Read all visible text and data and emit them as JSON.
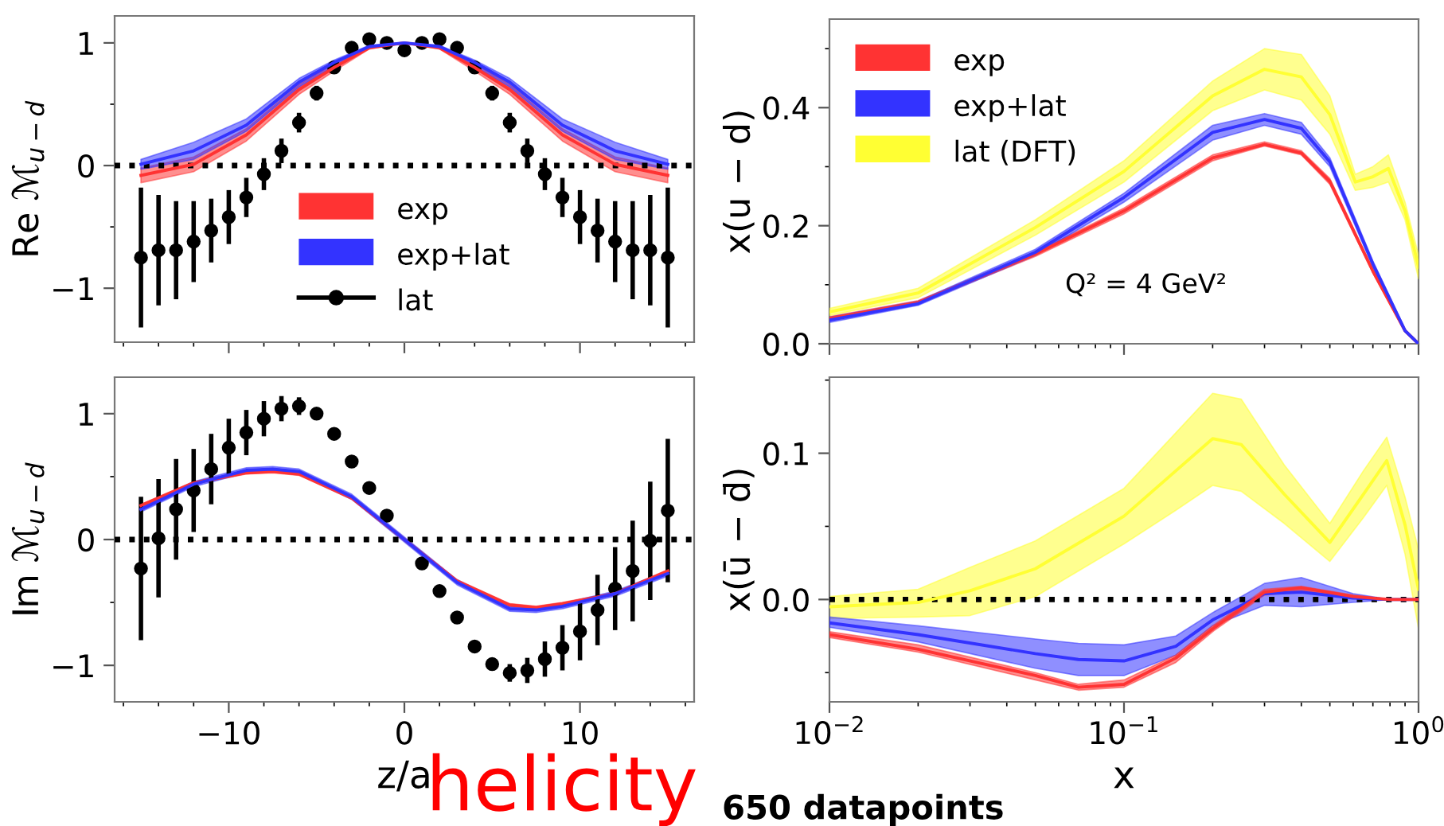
{
  "chart_data": [
    {
      "type": "line",
      "ylabel": "Re ℳ$_{u−d}$",
      "xlim": [
        -16.5,
        16.5
      ],
      "xticks": [
        -10,
        0,
        10
      ],
      "ylim": [
        -1.44,
        1.22
      ],
      "yticks": [
        {
          "value": -1,
          "label": "−1"
        },
        0,
        1
      ],
      "tick_labels": "y",
      "legend": "bottom",
      "grid": false,
      "ref_lines": [
        {
          "axis": "y",
          "value": 0,
          "line_style": "dotted",
          "color": "#000000"
        }
      ],
      "series": [
        {
          "name": "exp",
          "color": "#ff3333",
          "x": [
            -15,
            -12,
            -9,
            -6,
            -4,
            -2,
            0,
            2,
            4,
            6,
            9,
            12,
            15
          ],
          "values": [
            -0.08,
            0.01,
            0.25,
            0.62,
            0.8,
            0.96,
            1.0,
            0.96,
            0.8,
            0.62,
            0.25,
            0.01,
            -0.08
          ],
          "lower": [
            -0.14,
            -0.05,
            0.2,
            0.58,
            0.77,
            0.95,
            1.0,
            0.95,
            0.77,
            0.58,
            0.2,
            -0.05,
            -0.14
          ],
          "upper": [
            -0.02,
            0.07,
            0.3,
            0.66,
            0.83,
            0.97,
            1.0,
            0.97,
            0.83,
            0.66,
            0.3,
            0.07,
            -0.02
          ]
        },
        {
          "name": "exp+lat",
          "color": "#3333ff",
          "x": [
            -15,
            -12,
            -9,
            -6,
            -4,
            -2,
            0,
            2,
            4,
            6,
            9,
            12,
            15
          ],
          "values": [
            0.01,
            0.12,
            0.33,
            0.68,
            0.84,
            0.97,
            1.0,
            0.97,
            0.84,
            0.68,
            0.33,
            0.12,
            0.01
          ],
          "lower": [
            -0.03,
            0.05,
            0.28,
            0.64,
            0.81,
            0.96,
            1.0,
            0.96,
            0.81,
            0.64,
            0.28,
            0.05,
            -0.03
          ],
          "upper": [
            0.05,
            0.19,
            0.38,
            0.71,
            0.86,
            0.98,
            1.0,
            0.98,
            0.86,
            0.71,
            0.38,
            0.19,
            0.05
          ]
        },
        {
          "name": "lat",
          "type": "scatter",
          "marker": "circle",
          "color": "#000000",
          "x": [
            -15,
            -14,
            -13,
            -12,
            -11,
            -10,
            -9,
            -8,
            -7,
            -6,
            -5,
            -4,
            -3,
            -2,
            -1,
            0,
            1,
            2,
            3,
            4,
            5,
            6,
            7,
            8,
            9,
            10,
            11,
            12,
            13,
            14,
            15
          ],
          "values": [
            -0.75,
            -0.69,
            -0.69,
            -0.62,
            -0.53,
            -0.42,
            -0.26,
            -0.07,
            0.12,
            0.35,
            0.59,
            0.8,
            0.96,
            1.03,
            1.0,
            0.94,
            1.0,
            1.03,
            0.96,
            0.8,
            0.59,
            0.35,
            0.12,
            -0.07,
            -0.26,
            -0.42,
            -0.53,
            -0.62,
            -0.69,
            -0.69,
            -0.75
          ],
          "errors": [
            0.57,
            0.45,
            0.4,
            0.33,
            0.26,
            0.22,
            0.16,
            0.13,
            0.1,
            0.08,
            0.06,
            0.05,
            0.04,
            0.03,
            0.02,
            0.02,
            0.02,
            0.03,
            0.04,
            0.05,
            0.06,
            0.08,
            0.1,
            0.13,
            0.16,
            0.22,
            0.26,
            0.33,
            0.4,
            0.45,
            0.57
          ]
        }
      ]
    },
    {
      "type": "line",
      "ylabel": "x(u − d)",
      "log": "x",
      "xlim": [
        0.01,
        1
      ],
      "xticks": [
        {
          "value": 0.01,
          "label": null
        },
        {
          "value": 0.1,
          "label": null
        },
        {
          "value": 1,
          "label": null
        }
      ],
      "ylim": [
        0,
        0.55
      ],
      "yticks": [
        {
          "value": 0,
          "label": "0.0"
        },
        {
          "value": 0.2,
          "label": "0.2"
        },
        {
          "value": 0.4,
          "label": "0.4"
        }
      ],
      "tick_labels": "y",
      "legend": "top left",
      "grid": false,
      "annotations": [
        "Q² = 4 GeV²"
      ],
      "series": [
        {
          "name": "exp",
          "color": "#ff3333",
          "x": [
            0.01,
            0.02,
            0.05,
            0.1,
            0.2,
            0.3,
            0.4,
            0.5,
            0.7,
            0.9,
            1.0
          ],
          "values": [
            0.043,
            0.07,
            0.152,
            0.225,
            0.315,
            0.338,
            0.323,
            0.275,
            0.123,
            0.022,
            0.0
          ],
          "lower": [
            0.04,
            0.068,
            0.148,
            0.22,
            0.31,
            0.335,
            0.32,
            0.27,
            0.12,
            0.02,
            0.0
          ],
          "upper": [
            0.046,
            0.073,
            0.155,
            0.23,
            0.32,
            0.342,
            0.327,
            0.28,
            0.126,
            0.024,
            0.0
          ]
        },
        {
          "name": "exp+lat",
          "color": "#3333ff",
          "x": [
            0.01,
            0.02,
            0.05,
            0.1,
            0.2,
            0.3,
            0.4,
            0.5,
            0.7,
            0.9,
            1.0
          ],
          "values": [
            0.04,
            0.068,
            0.155,
            0.248,
            0.358,
            0.38,
            0.365,
            0.308,
            0.135,
            0.022,
            0.0
          ],
          "lower": [
            0.036,
            0.065,
            0.15,
            0.24,
            0.345,
            0.37,
            0.355,
            0.3,
            0.13,
            0.02,
            0.0
          ],
          "upper": [
            0.045,
            0.072,
            0.16,
            0.255,
            0.37,
            0.39,
            0.375,
            0.315,
            0.14,
            0.025,
            0.0
          ]
        },
        {
          "name": "lat (DFT)",
          "color": "#ffff33",
          "x": [
            0.01,
            0.02,
            0.05,
            0.1,
            0.2,
            0.3,
            0.4,
            0.5,
            0.61,
            0.7,
            0.79,
            0.9,
            1.0
          ],
          "values": [
            0.054,
            0.086,
            0.197,
            0.292,
            0.42,
            0.465,
            0.452,
            0.388,
            0.274,
            0.283,
            0.297,
            0.225,
            0.13
          ],
          "lower": [
            0.048,
            0.078,
            0.184,
            0.274,
            0.395,
            0.43,
            0.413,
            0.355,
            0.26,
            0.265,
            0.274,
            0.21,
            0.11
          ],
          "upper": [
            0.06,
            0.094,
            0.21,
            0.31,
            0.445,
            0.5,
            0.49,
            0.42,
            0.287,
            0.3,
            0.32,
            0.24,
            0.15
          ]
        }
      ]
    },
    {
      "type": "line",
      "ylabel": "Im ℳ$_{u−d}$",
      "xlabel": "z/a",
      "xlim": [
        -16.5,
        16.5
      ],
      "xticks": [
        {
          "value": -10,
          "label": "−10"
        },
        0,
        10
      ],
      "ylim": [
        -1.29,
        1.29
      ],
      "yticks": [
        {
          "value": -1,
          "label": "−1"
        },
        0,
        1
      ],
      "grid": false,
      "annotations": [
        "helicity"
      ],
      "ref_lines": [
        {
          "axis": "y",
          "value": 0,
          "line_style": "dotted",
          "color": "#000000"
        }
      ],
      "series": [
        {
          "color": "#ff3333",
          "x": [
            -15,
            -12,
            -9,
            -7.5,
            -6,
            -3,
            0,
            3,
            6,
            7.5,
            9,
            12,
            15
          ],
          "values": [
            0.27,
            0.45,
            0.53,
            0.54,
            0.52,
            0.33,
            0.0,
            -0.33,
            -0.52,
            -0.54,
            -0.51,
            -0.43,
            -0.25
          ],
          "lower": [
            0.26,
            0.44,
            0.52,
            0.53,
            0.51,
            0.32,
            -0.01,
            -0.34,
            -0.53,
            -0.55,
            -0.52,
            -0.44,
            -0.26
          ],
          "upper": [
            0.28,
            0.46,
            0.54,
            0.55,
            0.53,
            0.34,
            0.01,
            -0.32,
            -0.51,
            -0.53,
            -0.5,
            -0.42,
            -0.24
          ]
        },
        {
          "color": "#3333ff",
          "x": [
            -15,
            -12,
            -9,
            -7.5,
            -6,
            -3,
            0,
            3,
            6,
            7.5,
            9,
            12,
            15
          ],
          "values": [
            0.24,
            0.44,
            0.55,
            0.56,
            0.54,
            0.34,
            0.0,
            -0.34,
            -0.55,
            -0.56,
            -0.53,
            -0.43,
            -0.27
          ],
          "lower": [
            0.22,
            0.42,
            0.53,
            0.54,
            0.52,
            0.32,
            -0.02,
            -0.36,
            -0.57,
            -0.58,
            -0.55,
            -0.45,
            -0.29
          ],
          "upper": [
            0.26,
            0.46,
            0.57,
            0.58,
            0.56,
            0.36,
            0.02,
            -0.32,
            -0.53,
            -0.54,
            -0.51,
            -0.41,
            -0.25
          ]
        },
        {
          "type": "scatter",
          "marker": "circle",
          "color": "#000000",
          "x": [
            -15,
            -14,
            -13,
            -12,
            -11,
            -10,
            -9,
            -8,
            -7,
            -6,
            -5,
            -4,
            -3,
            -2,
            -1,
            1,
            2,
            3,
            4,
            5,
            6,
            7,
            8,
            9,
            10,
            11,
            12,
            13,
            14,
            15
          ],
          "values": [
            -0.23,
            0.01,
            0.24,
            0.39,
            0.56,
            0.73,
            0.85,
            0.96,
            1.04,
            1.06,
            1.0,
            0.84,
            0.62,
            0.41,
            0.19,
            -0.19,
            -0.41,
            -0.62,
            -0.85,
            -0.99,
            -1.06,
            -1.04,
            -0.95,
            -0.86,
            -0.73,
            -0.56,
            -0.39,
            -0.25,
            -0.01,
            0.23
          ],
          "errors": [
            0.57,
            0.47,
            0.4,
            0.33,
            0.28,
            0.23,
            0.18,
            0.14,
            0.1,
            0.07,
            0.04,
            null,
            null,
            null,
            null,
            null,
            null,
            null,
            null,
            0.04,
            0.07,
            0.1,
            0.14,
            0.18,
            0.23,
            0.28,
            0.33,
            0.4,
            0.47,
            0.57
          ]
        }
      ]
    },
    {
      "type": "line",
      "ylabel": "x(ū − d̄)",
      "xlabel": "x",
      "log": "x",
      "xlim": [
        0.01,
        1
      ],
      "xticks": [
        {
          "value": 0.01,
          "label": "10$^{−2}$"
        },
        {
          "value": 0.1,
          "label": "10$^{−1}$"
        },
        {
          "value": 1,
          "label": "10$^{0}$"
        }
      ],
      "ylim": [
        -0.07,
        0.152
      ],
      "yticks": [
        {
          "value": 0,
          "label": "0.0"
        },
        {
          "value": 0.1,
          "label": "0.1"
        }
      ],
      "grid": false,
      "annotations": [
        "650 datapoints"
      ],
      "ref_lines": [
        {
          "axis": "y",
          "value": 0,
          "line_style": "dotted",
          "color": "#000000"
        }
      ],
      "series": [
        {
          "color": "#ffff33",
          "x": [
            0.01,
            0.02,
            0.03,
            0.05,
            0.1,
            0.15,
            0.2,
            0.25,
            0.35,
            0.5,
            0.65,
            0.78,
            0.9,
            1.0
          ],
          "values": [
            -0.005,
            -0.002,
            0.006,
            0.021,
            0.057,
            0.088,
            0.11,
            0.106,
            0.072,
            0.039,
            0.072,
            0.095,
            0.051,
            0.007
          ],
          "lower": [
            -0.013,
            -0.012,
            -0.011,
            0.002,
            0.038,
            0.061,
            0.078,
            0.074,
            0.052,
            0.026,
            0.056,
            0.078,
            0.031,
            -0.02
          ],
          "upper": [
            0.002,
            0.007,
            0.022,
            0.04,
            0.076,
            0.114,
            0.141,
            0.137,
            0.092,
            0.052,
            0.088,
            0.111,
            0.07,
            0.034
          ]
        },
        {
          "color": "#3333ff",
          "x": [
            0.01,
            0.02,
            0.05,
            0.07,
            0.1,
            0.15,
            0.2,
            0.3,
            0.4,
            0.6,
            0.8,
            1.0
          ],
          "values": [
            -0.016,
            -0.024,
            -0.037,
            -0.041,
            -0.042,
            -0.032,
            -0.014,
            0.004,
            0.005,
            0.001,
            0.0,
            0.0
          ],
          "lower": [
            -0.019,
            -0.029,
            -0.047,
            -0.052,
            -0.052,
            -0.038,
            -0.018,
            -0.004,
            -0.005,
            -0.002,
            0.0,
            0.0
          ],
          "upper": [
            -0.012,
            -0.018,
            -0.027,
            -0.03,
            -0.031,
            -0.025,
            -0.009,
            0.011,
            0.015,
            0.004,
            0.0,
            0.0
          ]
        },
        {
          "color": "#ff3333",
          "x": [
            0.01,
            0.02,
            0.05,
            0.07,
            0.1,
            0.15,
            0.2,
            0.3,
            0.4,
            0.6,
            0.8,
            1.0
          ],
          "values": [
            -0.024,
            -0.034,
            -0.052,
            -0.06,
            -0.058,
            -0.04,
            -0.02,
            0.005,
            0.008,
            0.002,
            0.0,
            0.0
          ],
          "lower": [
            -0.026,
            -0.036,
            -0.055,
            -0.062,
            -0.06,
            -0.043,
            -0.022,
            0.003,
            0.006,
            0.001,
            0.0,
            0.0
          ],
          "upper": [
            -0.022,
            -0.031,
            -0.05,
            -0.058,
            -0.055,
            -0.038,
            -0.018,
            0.007,
            0.009,
            0.003,
            0.0,
            0.0
          ]
        }
      ]
    }
  ]
}
